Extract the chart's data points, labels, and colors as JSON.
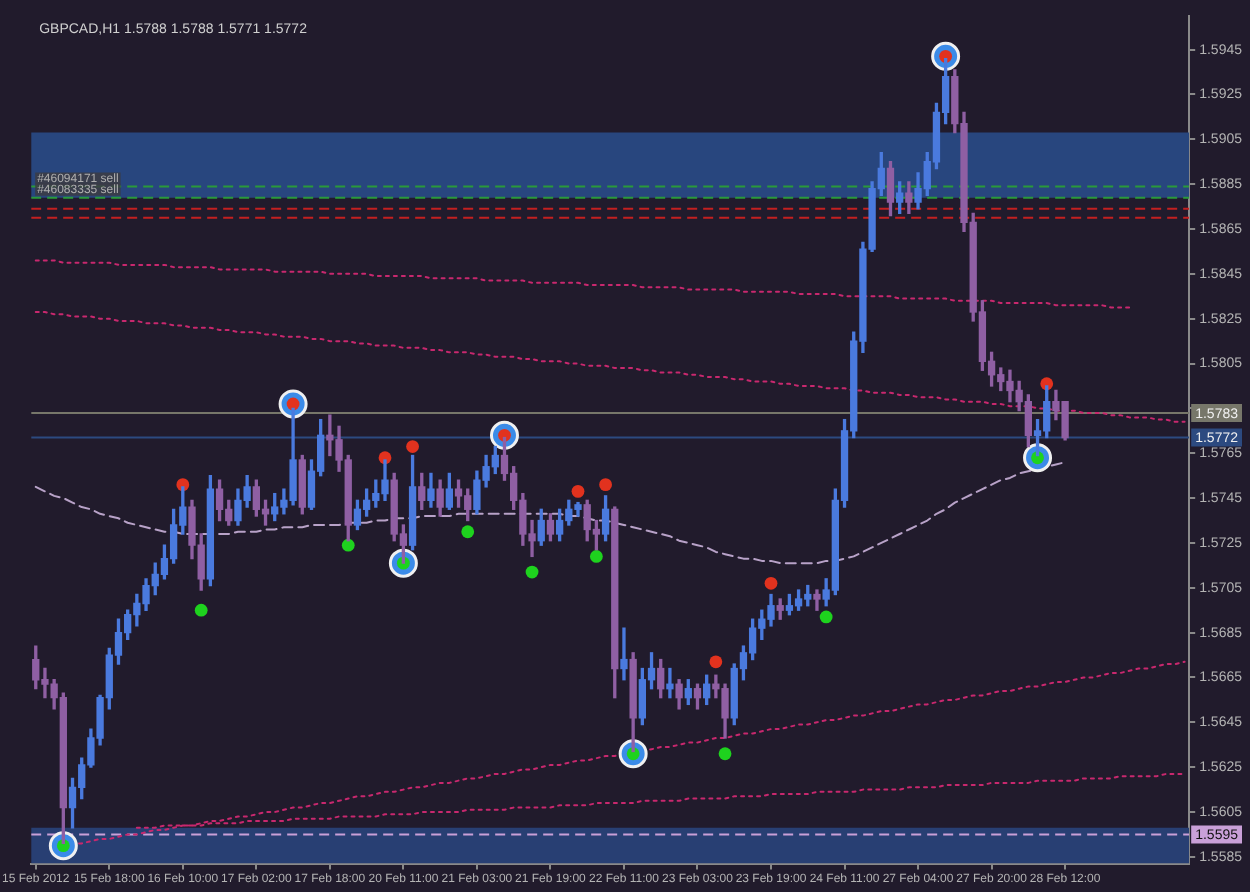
{
  "chart_data": {
    "type": "candlestick",
    "title": "GBPCAD,H1 1.5788 1.5788 1.5771 1.5772",
    "categories": [
      "15 Feb 2012",
      null,
      null,
      null,
      null,
      null,
      null,
      null,
      "15 Feb 18:00",
      null,
      null,
      null,
      null,
      null,
      null,
      null,
      "16 Feb 10:00",
      null,
      null,
      null,
      null,
      null,
      null,
      null,
      "17 Feb 02:00",
      null,
      null,
      null,
      null,
      null,
      null,
      null,
      "17 Feb 18:00",
      null,
      null,
      null,
      null,
      null,
      null,
      null,
      "20 Feb 11:00",
      null,
      null,
      null,
      null,
      null,
      null,
      null,
      "21 Feb 03:00",
      null,
      null,
      null,
      null,
      null,
      null,
      null,
      "21 Feb 19:00",
      null,
      null,
      null,
      null,
      null,
      null,
      null,
      "22 Feb 11:00",
      null,
      null,
      null,
      null,
      null,
      null,
      null,
      "23 Feb 03:00",
      null,
      null,
      null,
      null,
      null,
      null,
      null,
      "23 Feb 19:00",
      null,
      null,
      null,
      null,
      null,
      null,
      null,
      "24 Feb 11:00",
      null,
      null,
      null,
      null,
      null,
      null,
      null,
      "27 Feb 04:00",
      null,
      null,
      null,
      null,
      null,
      null,
      null,
      "27 Feb 20:00",
      null,
      null,
      null,
      null,
      null,
      null,
      null,
      "28 Feb 12:00",
      null,
      null,
      null,
      null,
      null,
      null,
      null,
      null,
      null,
      null,
      null,
      null,
      null
    ],
    "ohlc": [
      [
        1.5673,
        1.5679,
        1.566,
        1.5664
      ],
      [
        1.5664,
        1.5669,
        1.5656,
        1.5662
      ],
      [
        1.5662,
        1.5664,
        1.5651,
        1.5656
      ],
      [
        1.5656,
        1.5658,
        1.5591,
        1.5607
      ],
      [
        1.5607,
        1.562,
        1.5598,
        1.5616
      ],
      [
        1.5616,
        1.5629,
        1.5611,
        1.5626
      ],
      [
        1.5626,
        1.5642,
        1.5625,
        1.5638
      ],
      [
        1.5638,
        1.5657,
        1.5635,
        1.5656
      ],
      [
        1.5656,
        1.5678,
        1.5651,
        1.5675
      ],
      [
        1.5675,
        1.5691,
        1.5671,
        1.5685
      ],
      [
        1.5685,
        1.5695,
        1.5682,
        1.5693
      ],
      [
        1.5693,
        1.5702,
        1.5688,
        1.5698
      ],
      [
        1.5698,
        1.5709,
        1.5695,
        1.5706
      ],
      [
        1.5706,
        1.5716,
        1.5702,
        1.5711
      ],
      [
        1.5711,
        1.5724,
        1.5709,
        1.5718
      ],
      [
        1.5718,
        1.574,
        1.5716,
        1.5733
      ],
      [
        1.5733,
        1.575,
        1.5729,
        1.5741
      ],
      [
        1.5741,
        1.5744,
        1.5718,
        1.5724
      ],
      [
        1.5724,
        1.5729,
        1.5704,
        1.5709
      ],
      [
        1.5709,
        1.5755,
        1.5706,
        1.5749
      ],
      [
        1.5749,
        1.5753,
        1.5735,
        1.574
      ],
      [
        1.574,
        1.5744,
        1.5733,
        1.5735
      ],
      [
        1.5735,
        1.5749,
        1.5733,
        1.5744
      ],
      [
        1.5744,
        1.5755,
        1.5741,
        1.575
      ],
      [
        1.575,
        1.5753,
        1.5737,
        1.574
      ],
      [
        1.574,
        1.5744,
        1.5733,
        1.5738
      ],
      [
        1.5738,
        1.5747,
        1.5735,
        1.5741
      ],
      [
        1.5741,
        1.5749,
        1.5738,
        1.5744
      ],
      [
        1.5744,
        1.5785,
        1.5742,
        1.5762
      ],
      [
        1.5762,
        1.5764,
        1.5738,
        1.5741
      ],
      [
        1.5741,
        1.5762,
        1.574,
        1.5757
      ],
      [
        1.5757,
        1.578,
        1.5755,
        1.5773
      ],
      [
        1.5773,
        1.5782,
        1.5764,
        1.5771
      ],
      [
        1.5771,
        1.5777,
        1.5757,
        1.5762
      ],
      [
        1.5762,
        1.5764,
        1.5726,
        1.5733
      ],
      [
        1.5733,
        1.5744,
        1.5731,
        1.574
      ],
      [
        1.574,
        1.5749,
        1.5737,
        1.5744
      ],
      [
        1.5744,
        1.5753,
        1.5741,
        1.5747
      ],
      [
        1.5747,
        1.5762,
        1.5744,
        1.5753
      ],
      [
        1.5753,
        1.5756,
        1.5726,
        1.5729
      ],
      [
        1.5729,
        1.5733,
        1.5716,
        1.5724
      ],
      [
        1.5724,
        1.5764,
        1.5722,
        1.575
      ],
      [
        1.575,
        1.5756,
        1.574,
        1.5744
      ],
      [
        1.5744,
        1.5756,
        1.5741,
        1.5749
      ],
      [
        1.5749,
        1.5753,
        1.5737,
        1.5741
      ],
      [
        1.5741,
        1.5756,
        1.574,
        1.5749
      ],
      [
        1.5749,
        1.5753,
        1.5741,
        1.5746
      ],
      [
        1.5746,
        1.5749,
        1.5735,
        1.574
      ],
      [
        1.574,
        1.5757,
        1.5738,
        1.5753
      ],
      [
        1.5753,
        1.5764,
        1.575,
        1.5759
      ],
      [
        1.5759,
        1.5768,
        1.5756,
        1.5764
      ],
      [
        1.5764,
        1.5772,
        1.5753,
        1.5756
      ],
      [
        1.5756,
        1.5759,
        1.574,
        1.5744
      ],
      [
        1.5744,
        1.5747,
        1.5724,
        1.5729
      ],
      [
        1.5729,
        1.5735,
        1.5719,
        1.5726
      ],
      [
        1.5726,
        1.574,
        1.5724,
        1.5735
      ],
      [
        1.5735,
        1.5738,
        1.5726,
        1.5729
      ],
      [
        1.5729,
        1.574,
        1.5726,
        1.5735
      ],
      [
        1.5735,
        1.5744,
        1.5733,
        1.574
      ],
      [
        1.574,
        1.5743,
        1.5737,
        1.5742
      ],
      [
        1.5742,
        1.5744,
        1.5726,
        1.5731
      ],
      [
        1.5731,
        1.5735,
        1.5722,
        1.5729
      ],
      [
        1.5729,
        1.5746,
        1.5726,
        1.574
      ],
      [
        1.574,
        1.5741,
        1.5656,
        1.5669
      ],
      [
        1.5669,
        1.5687,
        1.5664,
        1.5673
      ],
      [
        1.5673,
        1.5676,
        1.5632,
        1.5647
      ],
      [
        1.5647,
        1.5669,
        1.5644,
        1.5664
      ],
      [
        1.5664,
        1.5676,
        1.566,
        1.5669
      ],
      [
        1.5669,
        1.5673,
        1.5656,
        1.566
      ],
      [
        1.566,
        1.5669,
        1.5656,
        1.5662
      ],
      [
        1.5662,
        1.5664,
        1.5651,
        1.5656
      ],
      [
        1.5656,
        1.5664,
        1.5653,
        1.566
      ],
      [
        1.566,
        1.5662,
        1.5651,
        1.5656
      ],
      [
        1.5656,
        1.5666,
        1.5653,
        1.5662
      ],
      [
        1.5662,
        1.5666,
        1.5656,
        1.566
      ],
      [
        1.566,
        1.5662,
        1.5638,
        1.5647
      ],
      [
        1.5647,
        1.5671,
        1.5644,
        1.5669
      ],
      [
        1.5669,
        1.5679,
        1.5664,
        1.5676
      ],
      [
        1.5676,
        1.5691,
        1.5673,
        1.5687
      ],
      [
        1.5687,
        1.5695,
        1.5682,
        1.5691
      ],
      [
        1.5691,
        1.5702,
        1.5688,
        1.5697
      ],
      [
        1.5697,
        1.57,
        1.5691,
        1.5695
      ],
      [
        1.5695,
        1.5702,
        1.5693,
        1.5697
      ],
      [
        1.5697,
        1.5704,
        1.5695,
        1.57
      ],
      [
        1.57,
        1.5706,
        1.5697,
        1.5702
      ],
      [
        1.5702,
        1.5704,
        1.5695,
        1.57
      ],
      [
        1.57,
        1.5709,
        1.5697,
        1.5704
      ],
      [
        1.5704,
        1.5749,
        1.5702,
        1.5744
      ],
      [
        1.5744,
        1.578,
        1.5741,
        1.5775
      ],
      [
        1.5775,
        1.5819,
        1.5772,
        1.5815
      ],
      [
        1.5815,
        1.5859,
        1.581,
        1.5856
      ],
      [
        1.5856,
        1.5886,
        1.5855,
        1.5883
      ],
      [
        1.5883,
        1.5899,
        1.588,
        1.5892
      ],
      [
        1.5892,
        1.5895,
        1.5871,
        1.5877
      ],
      [
        1.5877,
        1.5886,
        1.5872,
        1.5881
      ],
      [
        1.5881,
        1.5886,
        1.5872,
        1.5877
      ],
      [
        1.5877,
        1.589,
        1.5874,
        1.5883
      ],
      [
        1.5883,
        1.5899,
        1.588,
        1.5895
      ],
      [
        1.5895,
        1.5921,
        1.5892,
        1.5917
      ],
      [
        1.5917,
        1.5941,
        1.5912,
        1.5933
      ],
      [
        1.5933,
        1.5936,
        1.5908,
        1.5912
      ],
      [
        1.5912,
        1.5917,
        1.5864,
        1.5868
      ],
      [
        1.5868,
        1.5872,
        1.5824,
        1.5828
      ],
      [
        1.5828,
        1.5833,
        1.5802,
        1.5806
      ],
      [
        1.5806,
        1.581,
        1.5795,
        1.58
      ],
      [
        1.58,
        1.5803,
        1.5793,
        1.5797
      ],
      [
        1.5797,
        1.5802,
        1.5788,
        1.5793
      ],
      [
        1.5793,
        1.5797,
        1.5784,
        1.5788
      ],
      [
        1.5788,
        1.5791,
        1.5768,
        1.5773
      ],
      [
        1.5773,
        1.578,
        1.5764,
        1.5775
      ],
      [
        1.5775,
        1.5795,
        1.5772,
        1.5788
      ],
      [
        1.5788,
        1.5793,
        1.578,
        1.5784
      ],
      [
        1.5788,
        1.5788,
        1.5771,
        1.5772
      ],
      null,
      null,
      null,
      null,
      null,
      null,
      null,
      null,
      null,
      null,
      null,
      null,
      null
    ],
    "colors": [
      "#8f5fa3",
      "#8f5fa3",
      "#8f5fa3",
      "#8f5fa3",
      "#4a7ade",
      "#4a7ade",
      "#4a7ade",
      "#4a7ade",
      "#4a7ade",
      "#4a7ade",
      "#4a7ade",
      "#4a7ade",
      "#4a7ade",
      "#4a7ade",
      "#4a7ade",
      "#4a7ade",
      "#4a7ade",
      "#8f5fa3",
      "#8f5fa3",
      "#4a7ade",
      "#8f5fa3",
      "#8f5fa3",
      "#4a7ade",
      "#4a7ade",
      "#8f5fa3",
      "#8f5fa3",
      "#4a7ade",
      "#4a7ade",
      "#4a7ade",
      "#8f5fa3",
      "#4a7ade",
      "#4a7ade",
      "#8f5fa3",
      "#8f5fa3",
      "#8f5fa3",
      "#4a7ade",
      "#4a7ade",
      "#4a7ade",
      "#4a7ade",
      "#8f5fa3",
      "#8f5fa3",
      "#4a7ade",
      "#8f5fa3",
      "#4a7ade",
      "#8f5fa3",
      "#4a7ade",
      "#8f5fa3",
      "#8f5fa3",
      "#4a7ade",
      "#4a7ade",
      "#4a7ade",
      "#8f5fa3",
      "#8f5fa3",
      "#8f5fa3",
      "#8f5fa3",
      "#4a7ade",
      "#8f5fa3",
      "#4a7ade",
      "#4a7ade",
      "#4a7ade",
      "#8f5fa3",
      "#8f5fa3",
      "#4a7ade",
      "#8f5fa3",
      "#4a7ade",
      "#8f5fa3",
      "#4a7ade",
      "#4a7ade",
      "#8f5fa3",
      "#4a7ade",
      "#8f5fa3",
      "#4a7ade",
      "#8f5fa3",
      "#4a7ade",
      "#8f5fa3",
      "#8f5fa3",
      "#4a7ade",
      "#4a7ade",
      "#4a7ade",
      "#4a7ade",
      "#4a7ade",
      "#8f5fa3",
      "#4a7ade",
      "#4a7ade",
      "#4a7ade",
      "#8f5fa3",
      "#4a7ade",
      "#4a7ade",
      "#4a7ade",
      "#4a7ade",
      "#4a7ade",
      "#4a7ade",
      "#4a7ade",
      "#8f5fa3",
      "#4a7ade",
      "#8f5fa3",
      "#4a7ade",
      "#4a7ade",
      "#4a7ade",
      "#4a7ade",
      "#8f5fa3",
      "#8f5fa3",
      "#8f5fa3",
      "#8f5fa3",
      "#8f5fa3",
      "#8f5fa3",
      "#8f5fa3",
      "#8f5fa3",
      "#8f5fa3",
      "#4a7ade",
      "#4a7ade",
      "#8f5fa3",
      "#8f5fa3",
      null,
      null,
      null,
      null,
      null,
      null,
      null,
      null,
      null,
      null,
      null,
      null,
      null
    ],
    "ylim": [
      1.5582,
      1.596
    ],
    "yticks": [
      1.5585,
      1.5605,
      1.5625,
      1.5645,
      1.5665,
      1.5685,
      1.5705,
      1.5725,
      1.5745,
      1.5765,
      {
        "value": 1.5785,
        "label": null
      },
      1.5805,
      1.5825,
      1.5845,
      1.5865,
      1.5885,
      1.5905,
      1.5925,
      1.5945
    ],
    "series": [
      {
        "type": "line",
        "color": "#c8286e",
        "line_style": "dotted",
        "marker": "none",
        "values": [
          1.5851,
          1.5851,
          1.5851,
          1.585,
          1.585,
          1.585,
          1.585,
          1.585,
          1.585,
          1.5849,
          1.5849,
          1.5849,
          1.5849,
          1.5849,
          1.5849,
          1.5848,
          1.5848,
          1.5848,
          1.5848,
          1.5848,
          1.5847,
          1.5847,
          1.5847,
          1.5847,
          1.5847,
          1.5847,
          1.5846,
          1.5846,
          1.5846,
          1.5846,
          1.5846,
          1.5846,
          1.5845,
          1.5845,
          1.5845,
          1.5845,
          1.5845,
          1.5844,
          1.5844,
          1.5844,
          1.5844,
          1.5844,
          1.5844,
          1.5843,
          1.5843,
          1.5843,
          1.5843,
          1.5843,
          1.5843,
          1.5842,
          1.5842,
          1.5842,
          1.5842,
          1.5842,
          1.5841,
          1.5841,
          1.5841,
          1.5841,
          1.5841,
          1.5841,
          1.584,
          1.584,
          1.584,
          1.584,
          1.584,
          1.584,
          1.5839,
          1.5839,
          1.5839,
          1.5839,
          1.5839,
          1.5838,
          1.5838,
          1.5838,
          1.5838,
          1.5838,
          1.5838,
          1.5837,
          1.5837,
          1.5837,
          1.5837,
          1.5837,
          1.5837,
          1.5836,
          1.5836,
          1.5836,
          1.5836,
          1.5836,
          1.5835,
          1.5835,
          1.5835,
          1.5835,
          1.5835,
          1.5835,
          1.5834,
          1.5834,
          1.5834,
          1.5834,
          1.5834,
          1.5834,
          1.5833,
          1.5833,
          1.5833,
          1.5833,
          1.5833,
          1.5832,
          1.5832,
          1.5832,
          1.5832,
          1.5832,
          1.5832,
          1.5831,
          1.5831,
          1.5831,
          1.5831,
          1.5831,
          1.5831,
          1.583,
          1.583,
          1.583,
          null,
          null,
          null,
          null,
          null,
          null
        ]
      },
      {
        "type": "line",
        "color": "#c8286e",
        "line_style": "dotted",
        "marker": "none",
        "values": [
          1.5828,
          1.5828,
          1.5827,
          1.5827,
          1.5826,
          1.5826,
          1.5826,
          1.5825,
          1.5825,
          1.5824,
          1.5824,
          1.5824,
          1.5823,
          1.5823,
          1.5823,
          1.5822,
          1.5822,
          1.5821,
          1.5821,
          1.5821,
          1.582,
          1.582,
          1.5819,
          1.5819,
          1.5819,
          1.5818,
          1.5818,
          1.5817,
          1.5817,
          1.5817,
          1.5816,
          1.5816,
          1.5815,
          1.5815,
          1.5815,
          1.5814,
          1.5814,
          1.5813,
          1.5813,
          1.5813,
          1.5812,
          1.5812,
          1.5812,
          1.5811,
          1.5811,
          1.581,
          1.581,
          1.581,
          1.5809,
          1.5809,
          1.5808,
          1.5808,
          1.5808,
          1.5807,
          1.5807,
          1.5806,
          1.5806,
          1.5806,
          1.5805,
          1.5805,
          1.5804,
          1.5804,
          1.5804,
          1.5803,
          1.5803,
          1.5803,
          1.5802,
          1.5802,
          1.5801,
          1.5801,
          1.5801,
          1.58,
          1.58,
          1.5799,
          1.5799,
          1.5799,
          1.5798,
          1.5798,
          1.5797,
          1.5797,
          1.5797,
          1.5796,
          1.5796,
          1.5795,
          1.5795,
          1.5795,
          1.5794,
          1.5794,
          1.5794,
          1.5793,
          1.5793,
          1.5792,
          1.5792,
          1.5792,
          1.5791,
          1.5791,
          1.579,
          1.579,
          1.579,
          1.5789,
          1.5789,
          1.5788,
          1.5788,
          1.5788,
          1.5787,
          1.5787,
          1.5786,
          1.5786,
          1.5786,
          1.5785,
          1.5785,
          1.5784,
          1.5784,
          1.5784,
          1.5783,
          1.5783,
          1.5783,
          1.5782,
          1.5782,
          1.5781,
          1.5781,
          1.5781,
          1.578,
          1.578,
          1.5779,
          1.5779
        ]
      },
      {
        "type": "line",
        "color": "#c8286e",
        "line_style": "dotted",
        "marker": "none",
        "values": [
          null,
          null,
          null,
          1.559,
          1.5591,
          1.5591,
          1.5592,
          1.5593,
          1.5593,
          1.5594,
          1.5595,
          1.5595,
          1.5596,
          1.5597,
          1.5597,
          1.5598,
          1.5599,
          1.5599,
          1.56,
          1.5601,
          1.5601,
          1.5602,
          1.5603,
          1.5603,
          1.5604,
          1.5605,
          1.5605,
          1.5606,
          1.5607,
          1.5607,
          1.5608,
          1.5609,
          1.5609,
          1.561,
          1.5611,
          1.5612,
          1.5612,
          1.5613,
          1.5614,
          1.5614,
          1.5615,
          1.5616,
          1.5616,
          1.5617,
          1.5618,
          1.5618,
          1.5619,
          1.562,
          1.562,
          1.5621,
          1.5622,
          1.5622,
          1.5623,
          1.5624,
          1.5624,
          1.5625,
          1.5626,
          1.5626,
          1.5627,
          1.5628,
          1.5628,
          1.5629,
          1.563,
          1.563,
          1.5631,
          null,
          1.5632,
          1.5633,
          1.5634,
          1.5634,
          1.5635,
          1.5636,
          1.5636,
          1.5637,
          1.5638,
          1.5638,
          1.5639,
          1.564,
          1.564,
          1.5641,
          1.5642,
          1.5642,
          1.5643,
          1.5644,
          1.5644,
          1.5645,
          1.5646,
          1.5646,
          1.5647,
          1.5648,
          1.5648,
          1.5649,
          1.565,
          1.565,
          1.5651,
          1.5652,
          1.5653,
          1.5653,
          1.5654,
          1.5655,
          1.5655,
          1.5656,
          1.5657,
          1.5657,
          1.5658,
          1.5659,
          1.5659,
          1.566,
          1.5661,
          1.5661,
          1.5662,
          1.5663,
          1.5663,
          1.5664,
          1.5665,
          1.5665,
          1.5666,
          1.5667,
          1.5667,
          1.5668,
          1.5669,
          1.5669,
          1.567,
          1.5671,
          1.5671,
          1.5672
        ]
      },
      {
        "type": "line",
        "color": "#c8286e",
        "line_style": "dotted",
        "marker": "none",
        "values": [
          null,
          null,
          null,
          null,
          null,
          null,
          null,
          null,
          null,
          null,
          null,
          1.5598,
          1.5598,
          1.5598,
          1.5599,
          1.5599,
          1.5599,
          1.5599,
          1.5599,
          1.56,
          1.56,
          1.56,
          1.56,
          1.5601,
          1.5601,
          1.5601,
          1.5601,
          1.5601,
          1.5602,
          1.5602,
          1.5602,
          1.5602,
          1.5602,
          1.5603,
          1.5603,
          1.5603,
          1.5603,
          1.5603,
          1.5604,
          1.5604,
          1.5604,
          1.5604,
          1.5605,
          1.5605,
          1.5605,
          1.5605,
          1.5605,
          1.5606,
          1.5606,
          1.5606,
          1.5606,
          1.5606,
          1.5607,
          1.5607,
          1.5607,
          1.5607,
          1.5607,
          1.5608,
          1.5608,
          1.5608,
          1.5608,
          1.5609,
          1.5609,
          1.5609,
          1.5609,
          1.5609,
          1.561,
          1.561,
          1.561,
          1.561,
          1.561,
          1.5611,
          1.5611,
          1.5611,
          1.5611,
          1.5611,
          1.5612,
          1.5612,
          1.5612,
          1.5612,
          1.5613,
          1.5613,
          1.5613,
          1.5613,
          1.5613,
          1.5614,
          1.5614,
          1.5614,
          1.5614,
          1.5614,
          1.5615,
          1.5615,
          1.5615,
          1.5615,
          1.5615,
          1.5616,
          1.5616,
          1.5616,
          1.5616,
          1.5617,
          1.5617,
          1.5617,
          1.5617,
          1.5617,
          1.5618,
          1.5618,
          1.5618,
          1.5618,
          1.5618,
          1.5619,
          1.5619,
          1.5619,
          1.5619,
          1.5619,
          1.562,
          1.562,
          1.562,
          1.562,
          1.5621,
          1.5621,
          1.5621,
          1.5621,
          1.5621,
          1.5622,
          1.5622,
          1.5622
        ]
      },
      {
        "type": "line",
        "color": "#b8a2c8",
        "line_style": "dashed",
        "marker": "none",
        "values": [
          1.575,
          1.5748,
          1.5746,
          1.5745,
          1.5743,
          1.5741,
          1.574,
          1.5738,
          1.5737,
          1.5736,
          1.5734,
          1.5733,
          1.5732,
          1.5731,
          1.573,
          1.573,
          1.5729,
          1.5729,
          1.5729,
          1.5729,
          1.5729,
          1.5729,
          1.573,
          1.573,
          1.573,
          1.5731,
          1.5731,
          1.5732,
          1.5732,
          1.5732,
          1.5733,
          1.5733,
          1.5733,
          1.5733,
          1.5734,
          1.5734,
          1.5734,
          1.5735,
          1.5735,
          1.5736,
          1.5736,
          1.5736,
          1.5737,
          1.5737,
          1.5737,
          1.5737,
          1.5738,
          1.5738,
          1.5738,
          1.5738,
          1.5738,
          1.5738,
          1.5738,
          1.5738,
          1.5738,
          1.5738,
          1.5738,
          1.5738,
          1.5737,
          1.5737,
          1.5736,
          1.5735,
          1.5735,
          1.5734,
          1.5733,
          1.5732,
          1.5731,
          1.573,
          1.5729,
          1.5728,
          1.5726,
          1.5725,
          1.5724,
          1.5723,
          1.5721,
          1.572,
          1.5719,
          1.5718,
          1.5718,
          1.5717,
          1.5717,
          1.5716,
          1.5716,
          1.5716,
          1.5716,
          1.5716,
          1.5717,
          1.5717,
          1.5718,
          1.5719,
          1.5721,
          1.5723,
          1.5725,
          1.5727,
          1.5729,
          1.5731,
          1.5733,
          1.5735,
          1.5738,
          1.574,
          1.5743,
          1.5745,
          1.5747,
          1.5749,
          1.5751,
          1.5753,
          1.5754,
          1.5756,
          1.5757,
          1.5758,
          1.5759,
          1.576,
          1.5761,
          null,
          null,
          null,
          null,
          null,
          null,
          null,
          null,
          null,
          null,
          null,
          null,
          null
        ]
      },
      {
        "type": "bubble",
        "color": "#3b8be8",
        "values": [
          null,
          null,
          null,
          1.559,
          null,
          null,
          null,
          null,
          null,
          null,
          null,
          null,
          null,
          null,
          null,
          null,
          null,
          null,
          null,
          null,
          null,
          null,
          null,
          null,
          null,
          null,
          null,
          null,
          1.5787,
          null,
          null,
          null,
          null,
          null,
          null,
          null,
          null,
          null,
          null,
          null,
          1.5716,
          null,
          null,
          null,
          null,
          null,
          null,
          null,
          null,
          null,
          null,
          1.5773,
          null,
          null,
          null,
          null,
          null,
          null,
          null,
          null,
          null,
          null,
          null,
          null,
          null,
          1.5631,
          null,
          null,
          null,
          null,
          null,
          null,
          null,
          null,
          null,
          null,
          null,
          null,
          null,
          null,
          null,
          null,
          null,
          null,
          null,
          null,
          null,
          null,
          null,
          null,
          null,
          null,
          null,
          null,
          null,
          null,
          null,
          null,
          null,
          1.5942,
          null,
          null,
          null,
          null,
          null,
          null,
          null,
          null,
          null,
          1.5763,
          null,
          null,
          null,
          null,
          null,
          null,
          null,
          null,
          null,
          null,
          null,
          null,
          null,
          null,
          null,
          null
        ],
        "sizes": [
          null,
          null,
          null,
          1,
          null,
          null,
          null,
          null,
          null,
          null,
          null,
          null,
          null,
          null,
          null,
          null,
          null,
          null,
          null,
          null,
          null,
          null,
          null,
          null,
          null,
          null,
          null,
          null,
          1,
          null,
          null,
          null,
          null,
          null,
          null,
          null,
          null,
          null,
          null,
          null,
          1,
          null,
          null,
          null,
          null,
          null,
          null,
          null,
          null,
          null,
          null,
          1,
          null,
          null,
          null,
          null,
          null,
          null,
          null,
          null,
          null,
          null,
          null,
          null,
          null,
          1,
          null,
          null,
          null,
          null,
          null,
          null,
          null,
          null,
          null,
          null,
          null,
          null,
          null,
          null,
          null,
          null,
          null,
          null,
          null,
          null,
          null,
          null,
          null,
          null,
          null,
          null,
          null,
          null,
          null,
          null,
          null,
          null,
          null,
          1,
          null,
          null,
          null,
          null,
          null,
          null,
          null,
          null,
          null,
          1,
          null,
          null,
          null,
          null,
          null,
          null,
          null,
          null,
          null,
          null,
          null,
          null,
          null,
          null,
          null,
          null
        ]
      },
      {
        "type": "scatter",
        "color": "#e2321e",
        "marker": "circle",
        "values": [
          null,
          null,
          null,
          null,
          null,
          null,
          null,
          null,
          null,
          null,
          null,
          null,
          null,
          null,
          null,
          null,
          1.5751,
          null,
          null,
          null,
          null,
          null,
          null,
          null,
          null,
          null,
          null,
          null,
          1.5787,
          null,
          null,
          null,
          null,
          null,
          null,
          null,
          null,
          null,
          1.5763,
          null,
          null,
          1.5768,
          null,
          null,
          null,
          null,
          null,
          null,
          null,
          null,
          null,
          1.5773,
          null,
          null,
          null,
          null,
          null,
          null,
          null,
          1.5748,
          null,
          null,
          1.5751,
          null,
          null,
          null,
          null,
          null,
          null,
          null,
          null,
          null,
          null,
          null,
          1.5672,
          null,
          null,
          null,
          null,
          null,
          1.5707,
          null,
          null,
          null,
          null,
          null,
          null,
          null,
          null,
          null,
          null,
          null,
          null,
          null,
          null,
          null,
          null,
          null,
          null,
          1.5942,
          null,
          null,
          null,
          null,
          null,
          null,
          null,
          null,
          null,
          null,
          1.5796,
          null,
          null,
          null,
          null,
          null,
          null,
          null,
          null,
          null,
          null,
          null,
          null,
          null,
          null,
          null
        ]
      },
      {
        "type": "scatter",
        "color": "#1ed21e",
        "marker": "circle",
        "values": [
          null,
          null,
          null,
          1.559,
          null,
          null,
          null,
          null,
          null,
          null,
          null,
          null,
          null,
          null,
          null,
          null,
          null,
          null,
          1.5695,
          null,
          null,
          null,
          null,
          null,
          null,
          null,
          null,
          null,
          null,
          null,
          null,
          null,
          null,
          null,
          1.5724,
          null,
          null,
          null,
          null,
          null,
          1.5716,
          null,
          null,
          null,
          null,
          null,
          null,
          1.573,
          null,
          null,
          null,
          null,
          null,
          null,
          1.5712,
          null,
          null,
          null,
          null,
          null,
          null,
          1.5719,
          null,
          null,
          null,
          1.5631,
          null,
          null,
          null,
          null,
          null,
          null,
          null,
          null,
          null,
          1.5631,
          null,
          null,
          null,
          null,
          null,
          null,
          null,
          null,
          null,
          null,
          1.5692,
          null,
          null,
          null,
          null,
          null,
          null,
          null,
          null,
          null,
          null,
          null,
          null,
          null,
          null,
          null,
          null,
          null,
          null,
          null,
          null,
          null,
          null,
          1.5763,
          null,
          null,
          null,
          null,
          null,
          null,
          null,
          null,
          null,
          null,
          null,
          null,
          null,
          null,
          null,
          null
        ]
      }
    ],
    "bands": [
      {
        "axis": "y",
        "from": 1.5879,
        "to": 1.5908,
        "color": "#28467e"
      },
      {
        "axis": "y",
        "from": 1.5582,
        "to": 1.5598,
        "color": "#283f73"
      }
    ],
    "ref_lines": [
      {
        "axis": "y",
        "value": 1.5884,
        "color": "#2a9a3a",
        "line_style": "dashed"
      },
      {
        "axis": "y",
        "value": 1.5879,
        "color": "#2a9a3a",
        "line_style": "dashed"
      },
      {
        "axis": "y",
        "value": 1.5874,
        "color": "#c42020",
        "line_style": "dashed"
      },
      {
        "axis": "y",
        "value": 1.587,
        "color": "#c42020",
        "line_style": "dashed"
      },
      {
        "axis": "y",
        "value": 1.5783,
        "label": "1.5783",
        "color": "#77776a",
        "line_style": "solid"
      },
      {
        "axis": "y",
        "value": 1.5772,
        "label": "1.5772",
        "color": "#2c4a80",
        "line_style": "solid"
      },
      {
        "axis": "y",
        "value": 1.5595,
        "label": "1.5595",
        "color": "#c9a0d8",
        "line_style": "dashed"
      }
    ],
    "annotations": [
      {
        "text": "#46094171 sell",
        "y": 1.5884
      },
      {
        "text": "#46083335 sell",
        "y": 1.5879
      }
    ],
    "grid": false,
    "legend": false
  }
}
